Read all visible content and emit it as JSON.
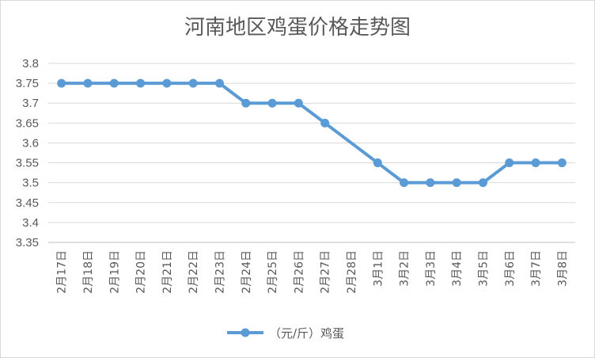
{
  "chart_data": {
    "type": "line",
    "title": "河南地区鸡蛋价格走势图",
    "xlabel": "",
    "ylabel": "",
    "ylim": [
      3.35,
      3.8
    ],
    "yticks": [
      3.35,
      3.4,
      3.45,
      3.5,
      3.55,
      3.6,
      3.65,
      3.7,
      3.75,
      3.8
    ],
    "ytick_labels": [
      "3.35",
      "3.4",
      "3.45",
      "3.5",
      "3.55",
      "3.6",
      "3.65",
      "3.7",
      "3.75",
      "3.8"
    ],
    "grid": true,
    "legend_position": "bottom",
    "categories": [
      "2月17日",
      "2月18日",
      "2月19日",
      "2月20日",
      "2月21日",
      "2月22日",
      "2月23日",
      "2月24日",
      "2月25日",
      "2月26日",
      "2月27日",
      "2月28日",
      "3月1日",
      "3月2日",
      "3月3日",
      "3月4日",
      "3月5日",
      "3月6日",
      "3月7日",
      "3月8日"
    ],
    "series": [
      {
        "name": "（元/斤）鸡蛋",
        "color": "#5b9bd5",
        "values": [
          3.75,
          3.75,
          3.75,
          3.75,
          3.75,
          3.75,
          3.75,
          3.7,
          3.7,
          3.7,
          3.65,
          null,
          3.55,
          3.5,
          3.5,
          3.5,
          3.5,
          3.55,
          3.55,
          3.55
        ]
      }
    ]
  }
}
